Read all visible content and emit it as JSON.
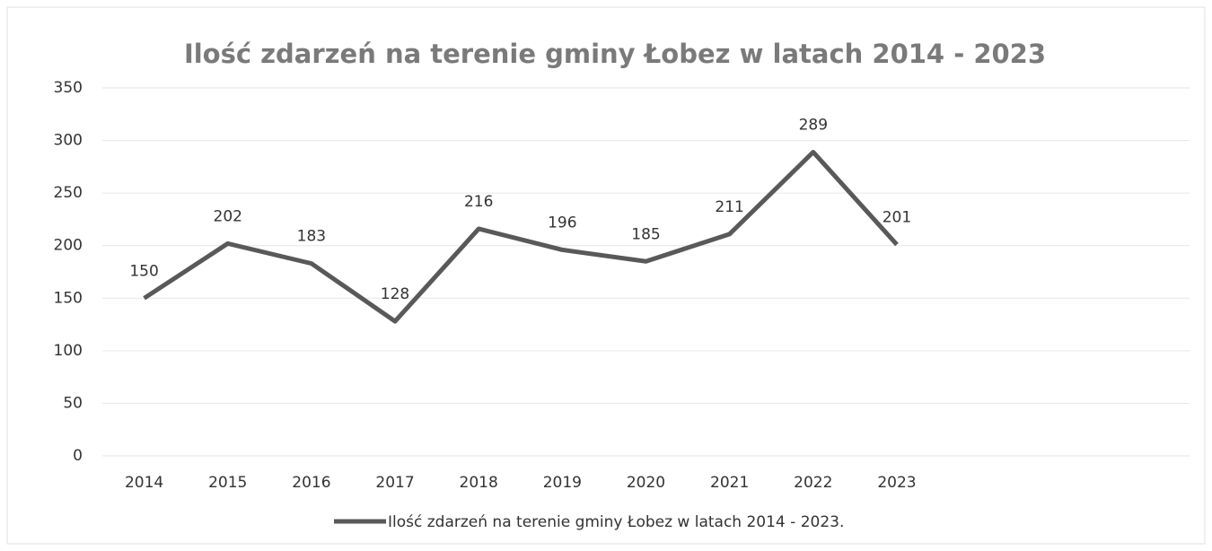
{
  "chart_data": {
    "type": "line",
    "title": "Ilość zdarzeń na terenie gminy Łobez w latach 2014 - 2023",
    "categories": [
      "2014",
      "2015",
      "2016",
      "2017",
      "2018",
      "2019",
      "2020",
      "2021",
      "2022",
      "2023",
      null,
      null,
      null
    ],
    "series": [
      {
        "name": "Ilość zdarzeń na terenie gminy Łobez w latach 2014 - 2023.",
        "color": "#595959",
        "values": [
          150,
          202,
          183,
          128,
          216,
          196,
          185,
          211,
          289,
          201,
          null,
          null,
          null
        ]
      }
    ],
    "ylim": [
      0,
      350
    ],
    "yticks": [
      0,
      50,
      100,
      150,
      200,
      250,
      300,
      350
    ],
    "grid": true,
    "legend": "bottom"
  }
}
